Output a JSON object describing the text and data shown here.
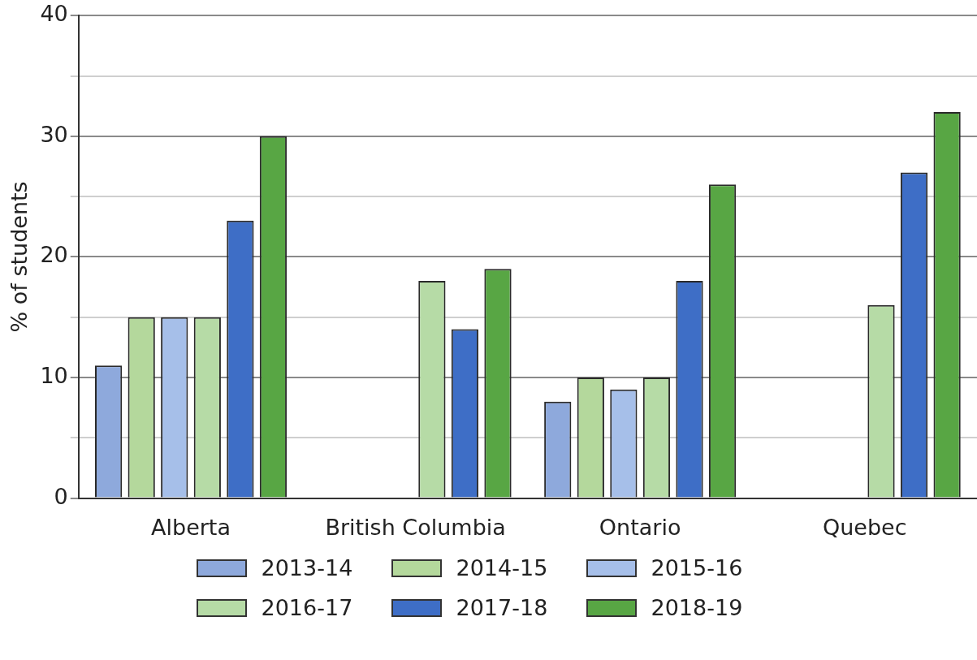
{
  "chart_data": {
    "type": "bar",
    "ylabel": "% of students",
    "categories": [
      "Alberta",
      "British Columbia",
      "Ontario",
      "Quebec"
    ],
    "series": [
      {
        "name": "2013-14",
        "color": "#8ea9dc",
        "values": [
          11,
          null,
          8,
          null
        ]
      },
      {
        "name": "2014-15",
        "color": "#b4d89c",
        "values": [
          15,
          null,
          10,
          null
        ]
      },
      {
        "name": "2015-16",
        "color": "#a6bfe9",
        "values": [
          15,
          null,
          9,
          null
        ]
      },
      {
        "name": "2016-17",
        "color": "#b6dba6",
        "values": [
          15,
          18,
          10,
          16
        ]
      },
      {
        "name": "2017-18",
        "color": "#3e6ec6",
        "values": [
          23,
          14,
          18,
          27
        ]
      },
      {
        "name": "2018-19",
        "color": "#58a644",
        "values": [
          30,
          19,
          26,
          32
        ]
      }
    ],
    "ylim": [
      0,
      40
    ],
    "yticks": [
      0,
      {
        "value": 5,
        "label": null
      },
      10,
      {
        "value": 15,
        "label": null
      },
      20,
      {
        "value": 25,
        "label": null
      },
      30,
      {
        "value": 35,
        "label": null
      },
      40
    ],
    "grid": "y",
    "legend": "bottom"
  }
}
